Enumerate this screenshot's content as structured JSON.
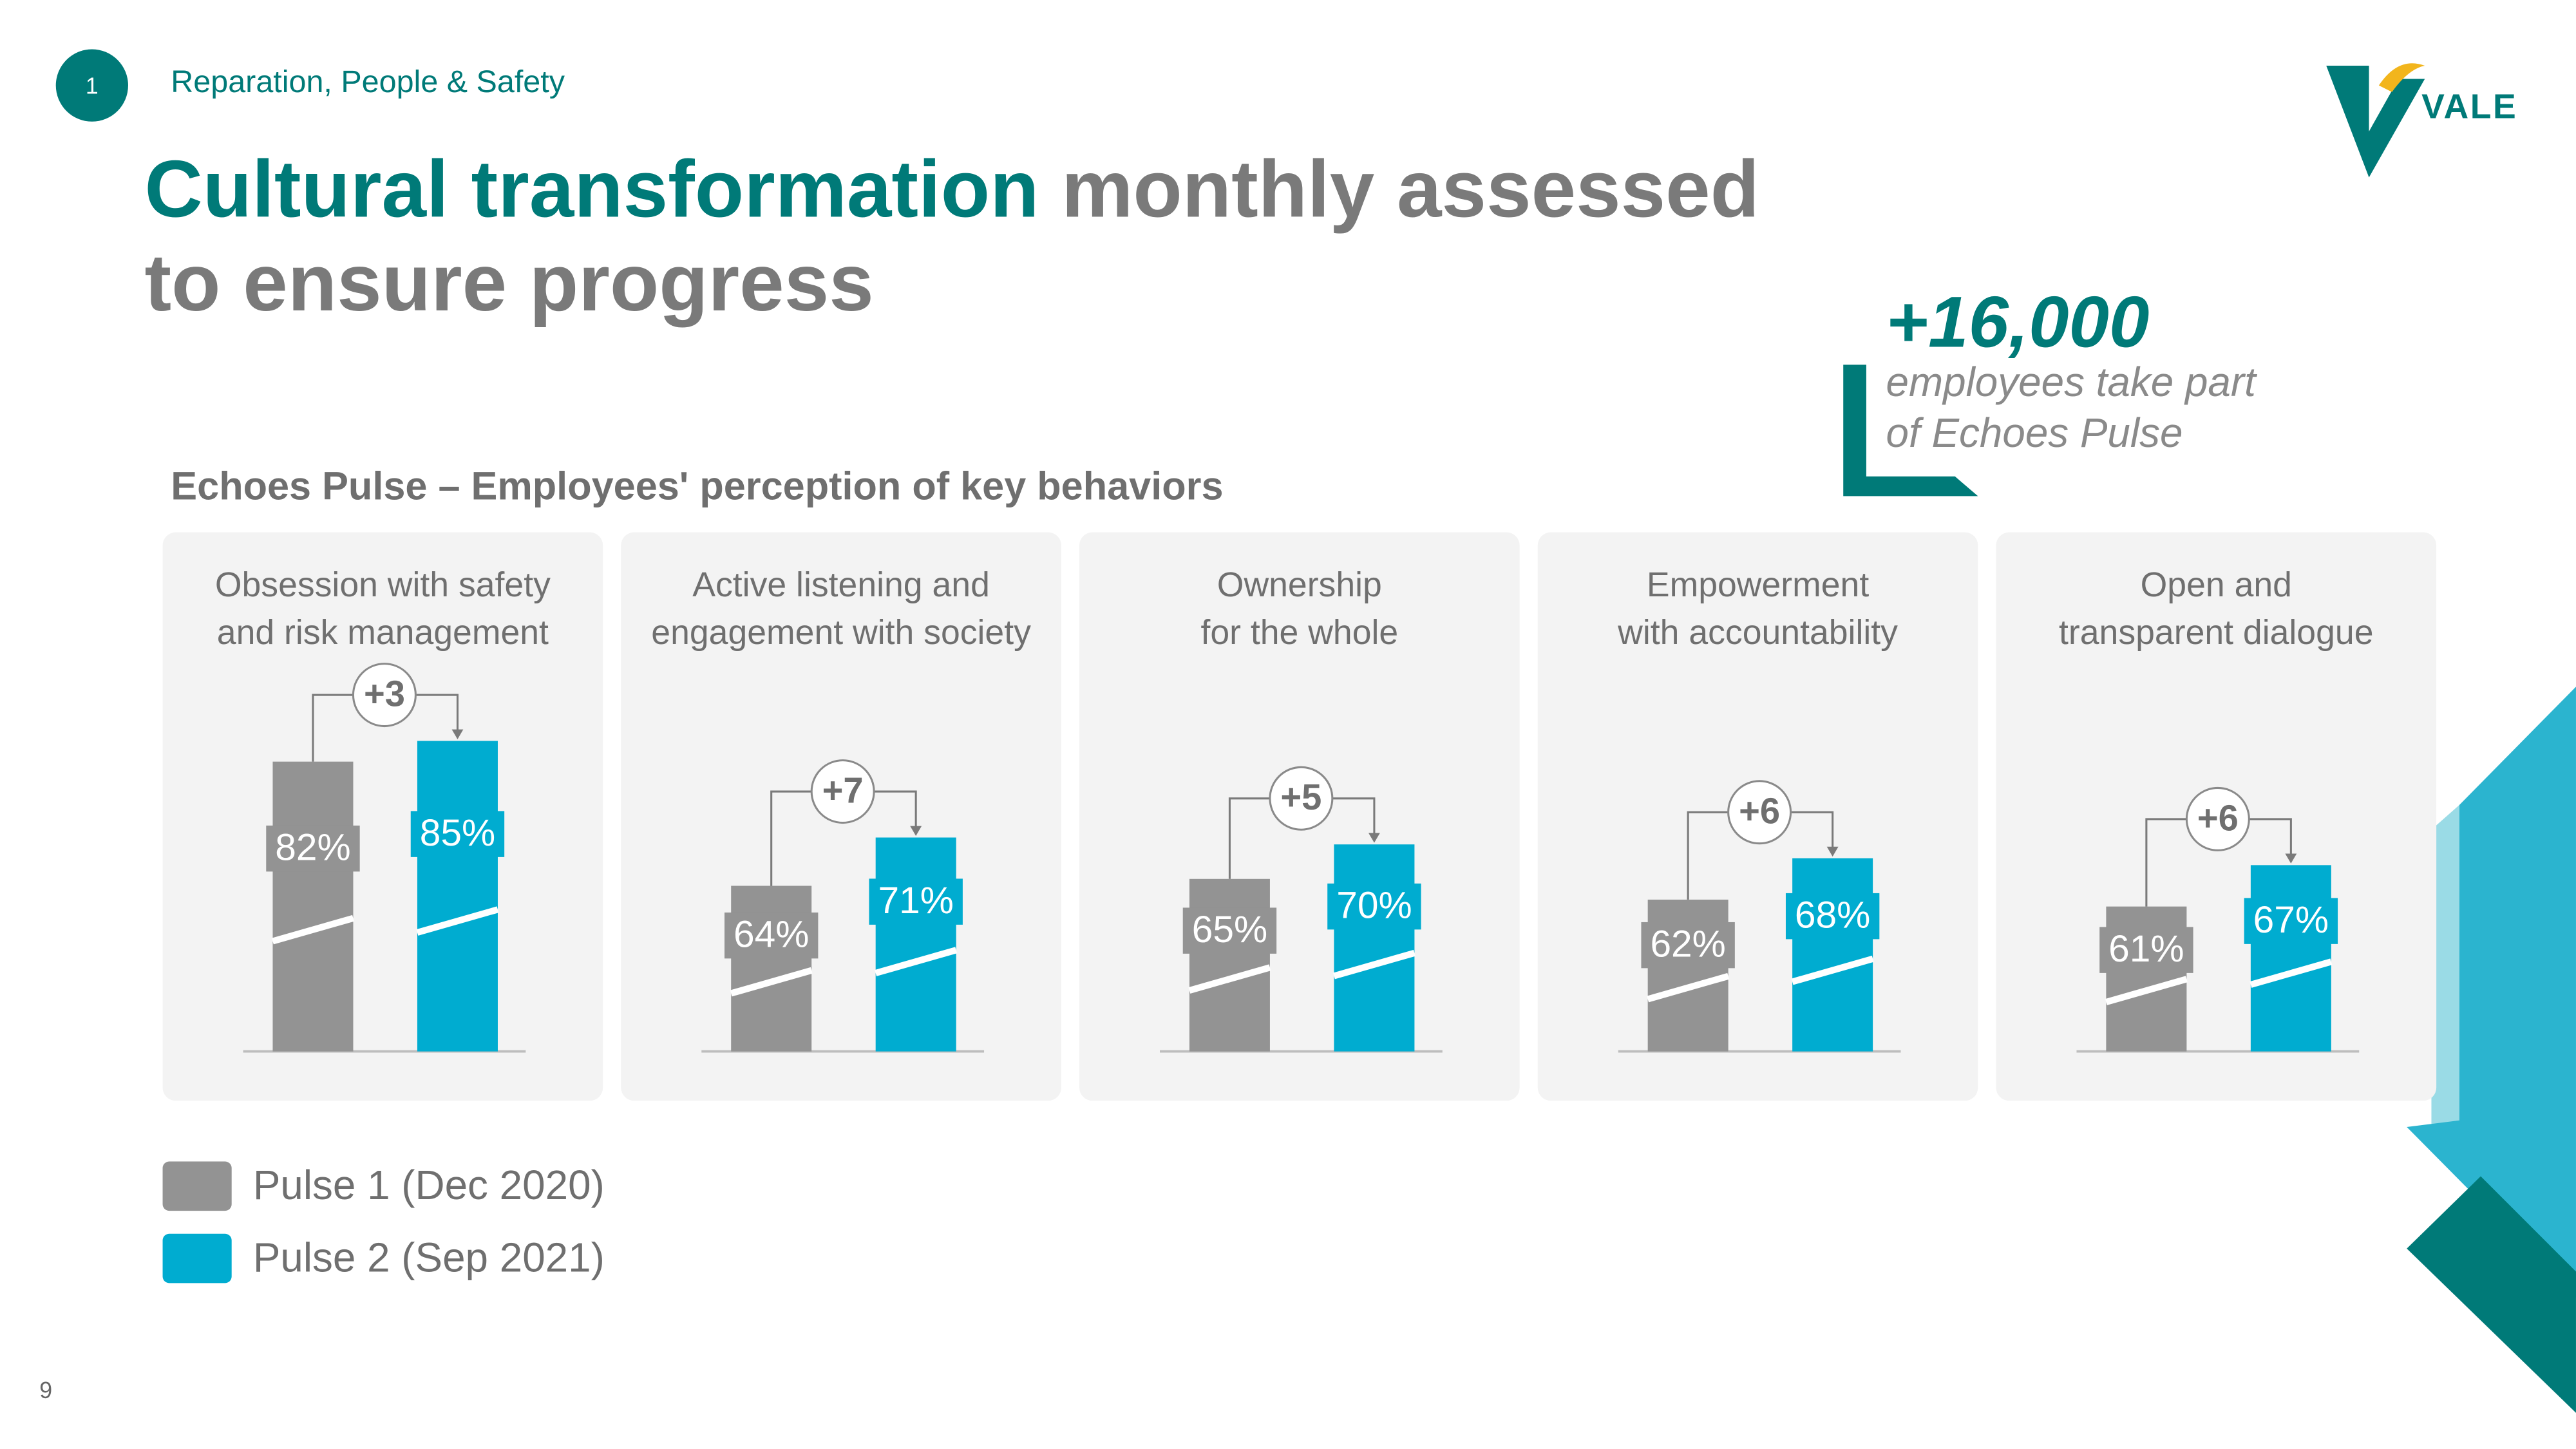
{
  "section": {
    "number": "1",
    "title": "Reparation, People & Safety"
  },
  "title": {
    "highlight": "Cultural transformation",
    "rest": "monthly assessed\nto ensure progress"
  },
  "callout": {
    "value": "+16,000",
    "text": "employees take part\nof Echoes Pulse"
  },
  "logo": "VALE",
  "page_number": "9",
  "chart_data": {
    "type": "bar",
    "subtitle": "Echoes Pulse – Employees' perception of key behaviors",
    "categories": [
      "Obsession with safety\nand risk management",
      "Active listening and\nengagement with society",
      "Ownership\nfor the whole",
      "Empowerment\nwith accountability",
      "Open and\ntransparent dialogue"
    ],
    "series": [
      {
        "name": "Pulse 1 (Dec 2020)",
        "color": "#939393",
        "values": [
          82,
          64,
          65,
          62,
          61
        ],
        "value_labels": [
          "82%",
          "64%",
          "65%",
          "62%",
          "61%"
        ]
      },
      {
        "name": "Pulse 2 (Sep 2021)",
        "color": "#00acd0",
        "values": [
          85,
          71,
          70,
          68,
          67
        ],
        "value_labels": [
          "85%",
          "71%",
          "70%",
          "68%",
          "67%"
        ]
      }
    ],
    "annotations": [
      "+3",
      "+7",
      "+5",
      "+6",
      "+6"
    ],
    "ylim": [
      40,
      90
    ]
  }
}
